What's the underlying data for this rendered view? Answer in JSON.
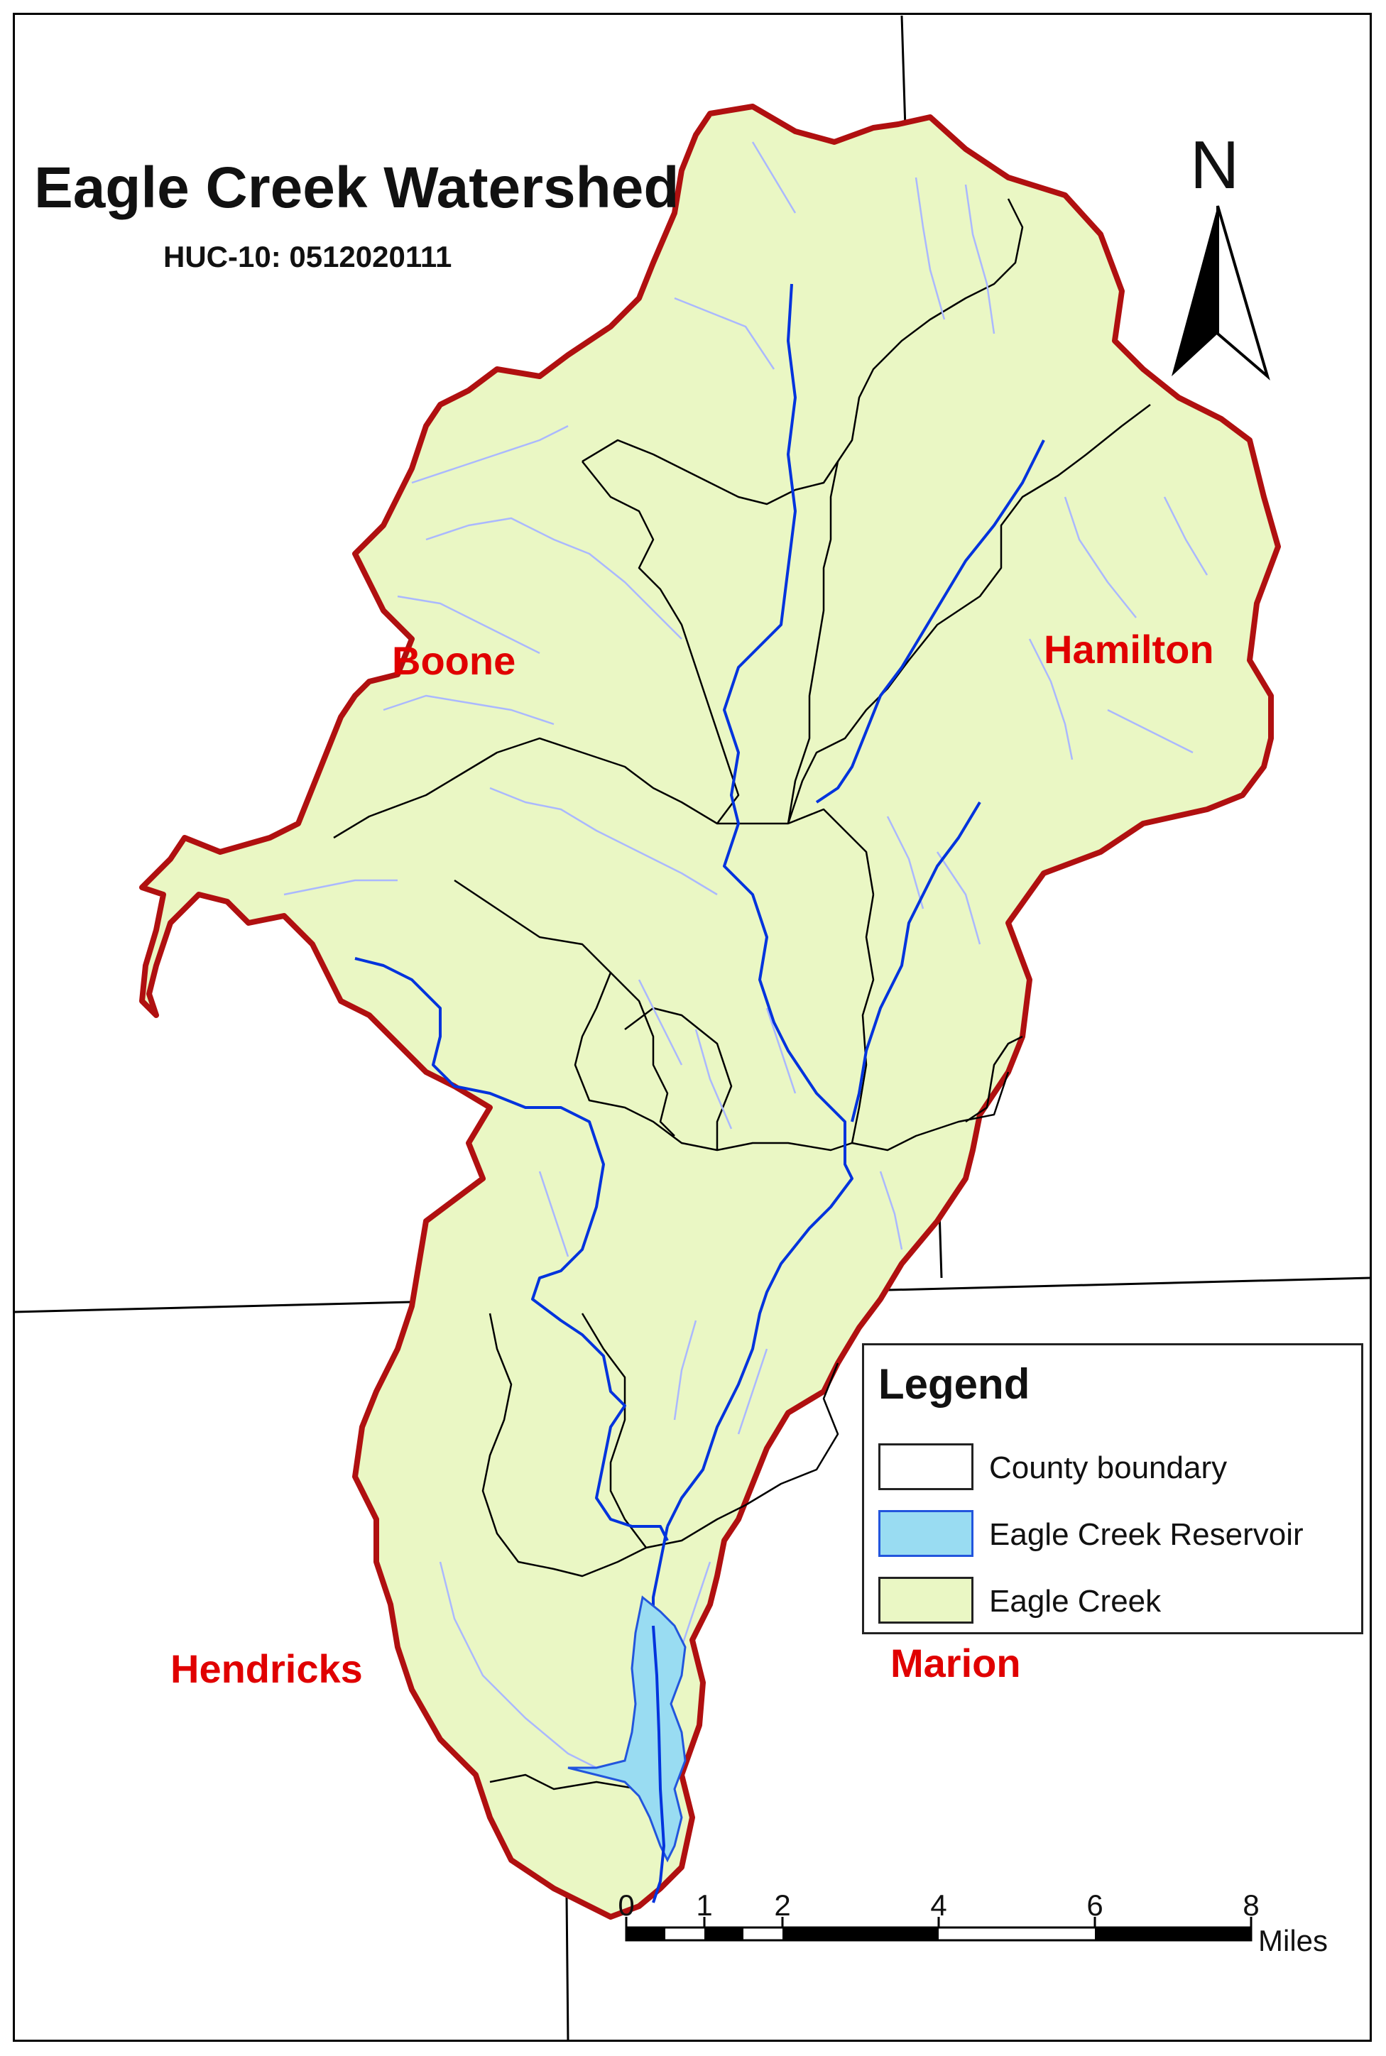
{
  "map": {
    "title": "Eagle Creek Watershed",
    "subtitle": "HUC-10: 0512020111",
    "counties": [
      {
        "name": "Boone"
      },
      {
        "name": "Hamilton"
      },
      {
        "name": "Hendricks"
      },
      {
        "name": "Marion"
      }
    ]
  },
  "north_arrow": {
    "letter": "N"
  },
  "legend": {
    "title": "Legend",
    "items": [
      {
        "label": "County boundary",
        "fill": "#ffffff"
      },
      {
        "label": "Eagle Creek Reservoir",
        "fill": "#99dcf2"
      },
      {
        "label": "Eagle Creek",
        "fill": "#eaf7c4"
      }
    ]
  },
  "scale_bar": {
    "ticks": [
      "0",
      "1",
      "2",
      "4",
      "6",
      "8"
    ],
    "unit": "Miles"
  },
  "colors": {
    "watershed_fill": "#eaf7c4",
    "watershed_outline": "#b01010",
    "county_label": "#e00000",
    "stream_main": "#0033dd",
    "stream_minor": "#aab8ff",
    "subbasin_line": "#000000",
    "reservoir": "#99dcf2"
  }
}
